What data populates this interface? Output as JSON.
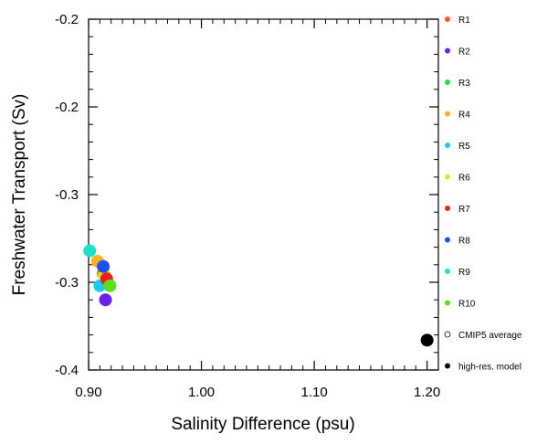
{
  "chart_data": {
    "type": "scatter",
    "title": "",
    "xlabel": "Salinity Difference (psu)",
    "ylabel": "Freshwater Transport (Sv)",
    "xlim": [
      0.9,
      1.21
    ],
    "ylim": [
      -0.4,
      -0.2
    ],
    "x_ticks": [
      0.9,
      1.0,
      1.1,
      1.2
    ],
    "x_tick_labels": [
      "0.90",
      "1.00",
      "1.10",
      "1.20"
    ],
    "y_ticks": [
      -0.2,
      -0.25,
      -0.3,
      -0.35,
      -0.4
    ],
    "y_tick_labels": [
      "-0.2",
      "-0.2",
      "-0.3",
      "-0.3",
      "-0.4"
    ],
    "grid": false,
    "legend_placement": "right",
    "series": [
      {
        "name": "R1",
        "color": "#ff5a1e",
        "marker": "filled",
        "x": [
          0.913
        ],
        "y": [
          -0.345
        ]
      },
      {
        "name": "R2",
        "color": "#6a1ee8",
        "marker": "filled",
        "x": [
          0.915
        ],
        "y": [
          -0.36
        ]
      },
      {
        "name": "R3",
        "color": "#22e04a",
        "marker": "filled",
        "x": [
          0.917
        ],
        "y": [
          -0.351
        ]
      },
      {
        "name": "R4",
        "color": "#ffb020",
        "marker": "filled",
        "x": [
          0.908
        ],
        "y": [
          -0.338
        ]
      },
      {
        "name": "R5",
        "color": "#1ec8f0",
        "marker": "filled",
        "x": [
          0.91
        ],
        "y": [
          -0.352
        ]
      },
      {
        "name": "R6",
        "color": "#c8f01e",
        "marker": "filled",
        "x": [
          0.914
        ],
        "y": [
          -0.346
        ]
      },
      {
        "name": "R7",
        "color": "#f01e1e",
        "marker": "filled",
        "x": [
          0.916
        ],
        "y": [
          -0.348
        ]
      },
      {
        "name": "R8",
        "color": "#1e50f0",
        "marker": "filled",
        "x": [
          0.913
        ],
        "y": [
          -0.341
        ]
      },
      {
        "name": "R9",
        "color": "#1ee0c8",
        "marker": "filled",
        "x": [
          0.901
        ],
        "y": [
          -0.332
        ]
      },
      {
        "name": "R10",
        "color": "#5ae01e",
        "marker": "filled",
        "x": [
          0.919
        ],
        "y": [
          -0.352
        ]
      },
      {
        "name": "CMIP5 average",
        "color": "#000000",
        "marker": "open",
        "x": [],
        "y": []
      },
      {
        "name": "high-res. model",
        "color": "#000000",
        "marker": "filled",
        "x": [
          1.2
        ],
        "y": [
          -0.383
        ]
      }
    ]
  }
}
